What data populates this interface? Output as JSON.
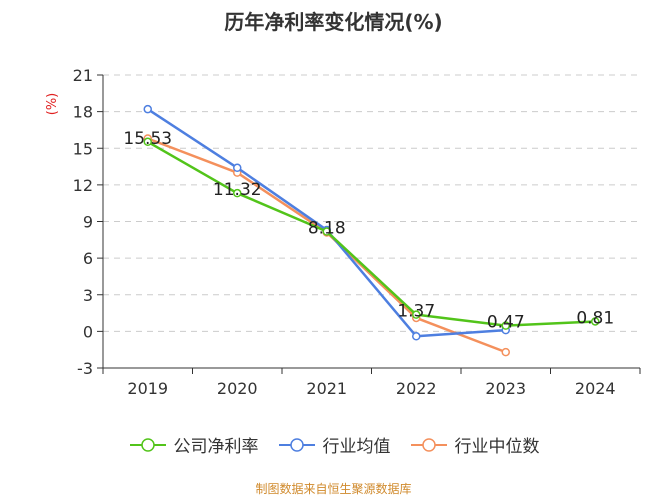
{
  "chart_data": {
    "type": "line",
    "title": "历年净利率变化情况(%)",
    "ylabel": "(%)",
    "xlabel": "",
    "categories": [
      "2019",
      "2020",
      "2021",
      "2022",
      "2023",
      "2024"
    ],
    "yticks": [
      "21",
      "18",
      "15",
      "12",
      "9",
      "6",
      "3",
      "0",
      "-3"
    ],
    "ylim": [
      -3,
      21
    ],
    "grid": true,
    "legend_position": "bottom",
    "series": [
      {
        "name": "公司净利率",
        "color": "#52c41a",
        "values": [
          15.53,
          11.32,
          8.18,
          1.37,
          0.47,
          0.81
        ],
        "labels": [
          "15.53",
          "11.32",
          "8.18",
          "1.37",
          "0.47",
          "0.81"
        ]
      },
      {
        "name": "行业均值",
        "color": "#4e7fe0",
        "values": [
          18.2,
          13.4,
          8.3,
          -0.4,
          0.1,
          null
        ]
      },
      {
        "name": "行业中位数",
        "color": "#f4905c",
        "values": [
          15.8,
          13.0,
          8.1,
          1.1,
          -1.7,
          null
        ]
      }
    ]
  },
  "source": "制图数据来自恒生聚源数据库"
}
